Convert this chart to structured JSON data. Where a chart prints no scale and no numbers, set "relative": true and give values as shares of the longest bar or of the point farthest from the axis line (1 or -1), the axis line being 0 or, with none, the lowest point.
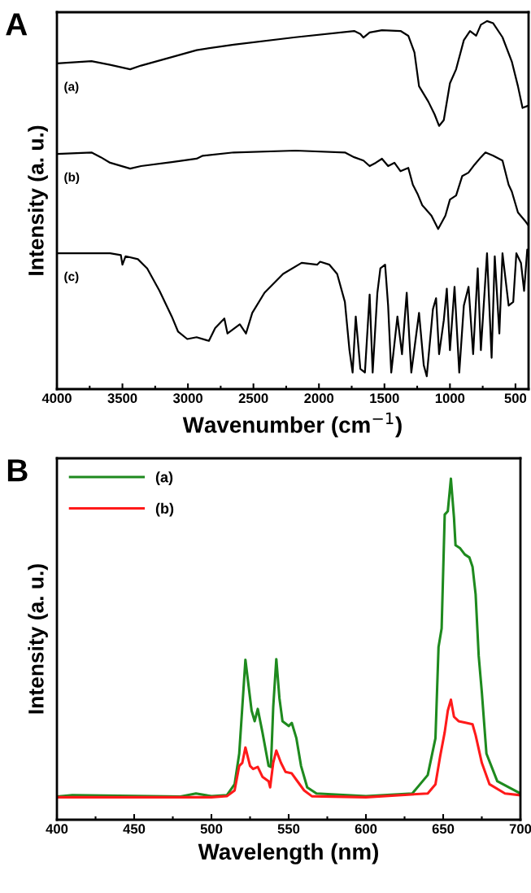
{
  "chart_data": [
    {
      "type": "line",
      "title": "A",
      "xlabel": "Wavenumber (cm$^{−1}$)",
      "ylabel": "Intensity (a. u.)",
      "relative": true,
      "xlim": [
        4000,
        400
      ],
      "xticks": [
        {
          "value": 4000,
          "label": "4000"
        },
        3500,
        3000,
        2500,
        2000,
        1500,
        1000,
        500
      ],
      "legend": false,
      "series": [
        {
          "name": "(a)",
          "color": "#000000",
          "x": [
            4000,
            3736,
            3594,
            3441,
            3358,
            3123,
            2934,
            2651,
            2179,
            1731,
            1684,
            1660,
            1613,
            1519,
            1377,
            1318,
            1271,
            1236,
            1165,
            1118,
            1083,
            1047,
            1000,
            953,
            894,
            847,
            800,
            764,
            717,
            670,
            599,
            528,
            481,
            446,
            410
          ],
          "values": [
            0.885,
            0.891,
            0.881,
            0.869,
            0.879,
            0.902,
            0.921,
            0.936,
            0.956,
            0.973,
            0.965,
            0.955,
            0.969,
            0.975,
            0.973,
            0.96,
            0.915,
            0.823,
            0.781,
            0.747,
            0.715,
            0.731,
            0.831,
            0.869,
            0.948,
            0.973,
            0.96,
            0.99,
            1.0,
            0.994,
            0.956,
            0.89,
            0.823,
            0.764,
            0.769
          ]
        },
        {
          "name": "(b)",
          "color": "#000000",
          "x": [
            4000,
            3736,
            3665,
            3594,
            3441,
            3358,
            3123,
            2934,
            2887,
            2651,
            2179,
            1802,
            1731,
            1660,
            1613,
            1566,
            1519,
            1472,
            1424,
            1377,
            1318,
            1283,
            1248,
            1212,
            1141,
            1090,
            1035,
            1000,
            953,
            906,
            859,
            812,
            764,
            729,
            670,
            599,
            552,
            528,
            481,
            422,
            400
          ],
          "values": [
            0.639,
            0.643,
            0.63,
            0.615,
            0.599,
            0.606,
            0.617,
            0.626,
            0.634,
            0.643,
            0.648,
            0.643,
            0.63,
            0.621,
            0.606,
            0.615,
            0.626,
            0.606,
            0.615,
            0.592,
            0.601,
            0.555,
            0.531,
            0.5,
            0.471,
            0.435,
            0.471,
            0.515,
            0.526,
            0.579,
            0.588,
            0.61,
            0.63,
            0.643,
            0.634,
            0.621,
            0.555,
            0.537,
            0.48,
            0.455,
            0.444
          ]
        },
        {
          "name": "(c)",
          "color": "#000000",
          "x": [
            4000,
            3594,
            3512,
            3500,
            3476,
            3382,
            3311,
            3217,
            3123,
            3075,
            3005,
            2934,
            2840,
            2792,
            2722,
            2698,
            2604,
            2557,
            2509,
            2415,
            2274,
            2132,
            2014,
            1991,
            1920,
            1861,
            1802,
            1767,
            1743,
            1719,
            1684,
            1649,
            1613,
            1590,
            1554,
            1531,
            1495,
            1472,
            1448,
            1401,
            1366,
            1330,
            1295,
            1236,
            1200,
            1177,
            1130,
            1106,
            1083,
            1047,
            1024,
            1000,
            965,
            929,
            894,
            858,
            823,
            788,
            764,
            717,
            682,
            658,
            623,
            599,
            552,
            517,
            493,
            458,
            434,
            410,
            400
          ],
          "values": [
            0.369,
            0.369,
            0.364,
            0.338,
            0.361,
            0.353,
            0.328,
            0.267,
            0.197,
            0.156,
            0.136,
            0.141,
            0.131,
            0.166,
            0.192,
            0.151,
            0.176,
            0.151,
            0.207,
            0.262,
            0.313,
            0.343,
            0.338,
            0.346,
            0.338,
            0.313,
            0.237,
            0.106,
            0.045,
            0.197,
            0.055,
            0.045,
            0.257,
            0.045,
            0.262,
            0.328,
            0.338,
            0.227,
            0.045,
            0.197,
            0.095,
            0.262,
            0.045,
            0.207,
            0.065,
            0.035,
            0.217,
            0.247,
            0.095,
            0.187,
            0.273,
            0.106,
            0.278,
            0.045,
            0.227,
            0.278,
            0.095,
            0.328,
            0.106,
            0.369,
            0.085,
            0.361,
            0.151,
            0.369,
            0.227,
            0.237,
            0.369,
            0.343,
            0.267,
            0.379,
            0.361
          ]
        }
      ]
    },
    {
      "type": "line",
      "title": "B",
      "xlabel": "Wavelength (nm)",
      "ylabel": "Intensity (a. u.)",
      "relative": true,
      "xlim": [
        400,
        700
      ],
      "xticks": [
        400,
        450,
        500,
        550,
        600,
        650,
        700
      ],
      "legend": "top left",
      "series": [
        {
          "name": "(a)",
          "color": "#1e8a1e",
          "x": [
            400,
            410,
            480,
            490,
            500,
            510,
            515,
            518,
            522,
            526,
            528,
            530,
            533,
            537,
            538.5,
            540,
            542,
            544,
            546,
            550,
            552,
            555,
            558,
            562,
            568,
            600,
            630,
            640,
            645,
            647,
            649,
            651,
            653,
            655,
            657,
            658,
            661,
            664,
            667,
            669,
            671,
            673,
            675,
            678,
            685,
            700
          ],
          "values": [
            0.068,
            0.072,
            0.068,
            0.077,
            0.069,
            0.072,
            0.104,
            0.194,
            0.469,
            0.32,
            0.289,
            0.325,
            0.257,
            0.158,
            0.155,
            0.33,
            0.471,
            0.357,
            0.289,
            0.275,
            0.284,
            0.239,
            0.158,
            0.095,
            0.077,
            0.069,
            0.077,
            0.131,
            0.239,
            0.507,
            0.561,
            0.895,
            0.905,
            1.0,
            0.886,
            0.805,
            0.796,
            0.778,
            0.769,
            0.742,
            0.661,
            0.48,
            0.375,
            0.194,
            0.113,
            0.077
          ]
        },
        {
          "name": "(b)",
          "color": "#ff1a1a",
          "x": [
            400,
            500,
            510,
            515,
            518,
            520,
            522,
            525,
            527,
            530,
            533,
            537,
            538,
            540,
            542,
            545,
            548,
            552,
            555,
            560,
            565,
            600,
            640,
            645,
            648,
            651,
            653,
            655,
            657,
            660,
            665,
            669,
            671,
            675,
            680,
            690,
            700
          ],
          "values": [
            0.066,
            0.066,
            0.069,
            0.086,
            0.158,
            0.167,
            0.212,
            0.158,
            0.149,
            0.155,
            0.126,
            0.113,
            0.095,
            0.167,
            0.203,
            0.167,
            0.14,
            0.136,
            0.117,
            0.086,
            0.069,
            0.066,
            0.077,
            0.104,
            0.185,
            0.257,
            0.32,
            0.352,
            0.302,
            0.289,
            0.284,
            0.28,
            0.248,
            0.167,
            0.104,
            0.077,
            0.072
          ]
        }
      ]
    }
  ]
}
